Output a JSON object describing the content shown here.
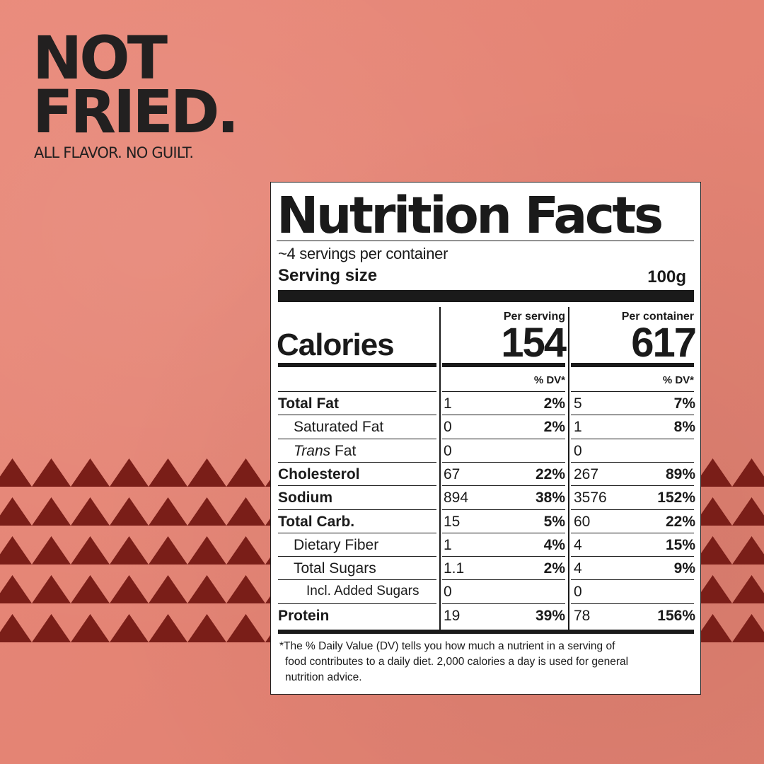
{
  "brand": {
    "headline_line1": "NOT",
    "headline_line2": "FRIED.",
    "tagline": "ALL FLAVOR. NO GUILT."
  },
  "colors": {
    "background": "#e88474",
    "zigzag": "#7a1e18",
    "ink": "#222020"
  },
  "label": {
    "title": "Nutrition Facts",
    "servings_per_container": "~4 servings per container",
    "serving_size_label": "Serving size",
    "serving_size_value": "100g",
    "calories_label": "Calories",
    "per_serving_label": "Per serving",
    "per_container_label": "Per container",
    "calories_per_serving": "154",
    "calories_per_container": "617",
    "dv_header": "% DV*",
    "rows": [
      {
        "name": "Total Fat",
        "s_amt": "1",
        "s_dv": "2%",
        "c_amt": "5",
        "c_dv": "7%"
      },
      {
        "name": "Saturated Fat",
        "s_amt": "0",
        "s_dv": "2%",
        "c_amt": "1",
        "c_dv": "8%"
      },
      {
        "name_italic": "Trans",
        "name": " Fat",
        "s_amt": "0",
        "s_dv": "",
        "c_amt": "0",
        "c_dv": ""
      },
      {
        "name": "Cholesterol",
        "s_amt": "67",
        "s_dv": "22%",
        "c_amt": "267",
        "c_dv": "89%"
      },
      {
        "name": "Sodium",
        "s_amt": "894",
        "s_dv": "38%",
        "c_amt": "3576",
        "c_dv": "152%"
      },
      {
        "name": "Total Carb.",
        "s_amt": "15",
        "s_dv": "5%",
        "c_amt": "60",
        "c_dv": "22%"
      },
      {
        "name": "Dietary Fiber",
        "s_amt": "1",
        "s_dv": "4%",
        "c_amt": "4",
        "c_dv": "15%"
      },
      {
        "name": "Total Sugars",
        "s_amt": "1.1",
        "s_dv": "2%",
        "c_amt": "4",
        "c_dv": "9%"
      },
      {
        "name": "Incl. Added Sugars",
        "s_amt": "0",
        "s_dv": "",
        "c_amt": "0",
        "c_dv": ""
      },
      {
        "name": "Protein",
        "s_amt": "19",
        "s_dv": "39%",
        "c_amt": "78",
        "c_dv": "156%"
      }
    ],
    "footnote_line1": "*The % Daily Value (DV) tells you how much a nutrient in a serving of",
    "footnote_line2": "food contributes to a daily diet. 2,000 calories a day is used for general",
    "footnote_line3": "nutrition advice."
  }
}
